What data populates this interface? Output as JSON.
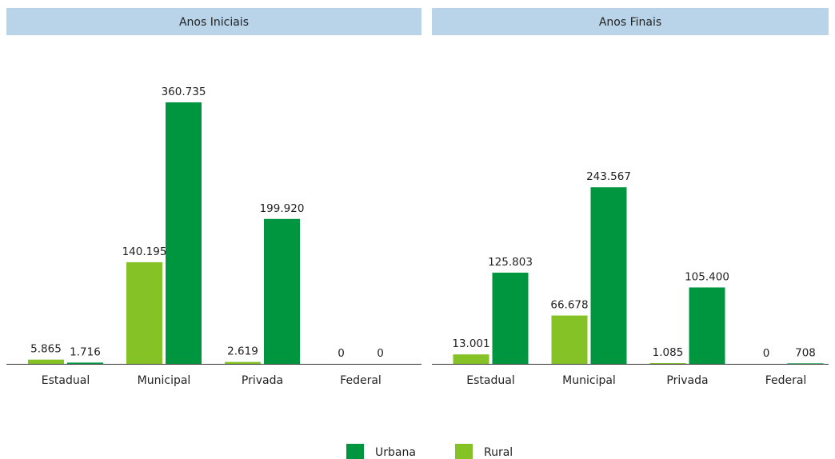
{
  "chart_data": [
    {
      "type": "bar",
      "title": "Anos Iniciais",
      "categories": [
        "Estadual",
        "Municipal",
        "Privada",
        "Federal"
      ],
      "series": [
        {
          "name": "Urbana",
          "color": "#00963f",
          "values": [
            1716,
            360735,
            199920,
            0
          ],
          "value_labels": [
            "1.716",
            "360.735",
            "199.920",
            "0"
          ]
        },
        {
          "name": "Rural",
          "color": "#85c226",
          "values": [
            5865,
            140195,
            2619,
            0
          ],
          "value_labels": [
            "5.865",
            "140.195",
            "2.619",
            "0"
          ]
        }
      ]
    },
    {
      "type": "bar",
      "title": "Anos Finais",
      "categories": [
        "Estadual",
        "Municipal",
        "Privada",
        "Federal"
      ],
      "series": [
        {
          "name": "Urbana",
          "color": "#00963f",
          "values": [
            125803,
            243567,
            105400,
            708
          ],
          "value_labels": [
            "125.803",
            "243.567",
            "105.400",
            "708"
          ]
        },
        {
          "name": "Rural",
          "color": "#85c226",
          "values": [
            13001,
            66678,
            1085,
            0
          ],
          "value_labels": [
            "13.001",
            "66.678",
            "1.085",
            "0"
          ]
        }
      ]
    }
  ]
}
